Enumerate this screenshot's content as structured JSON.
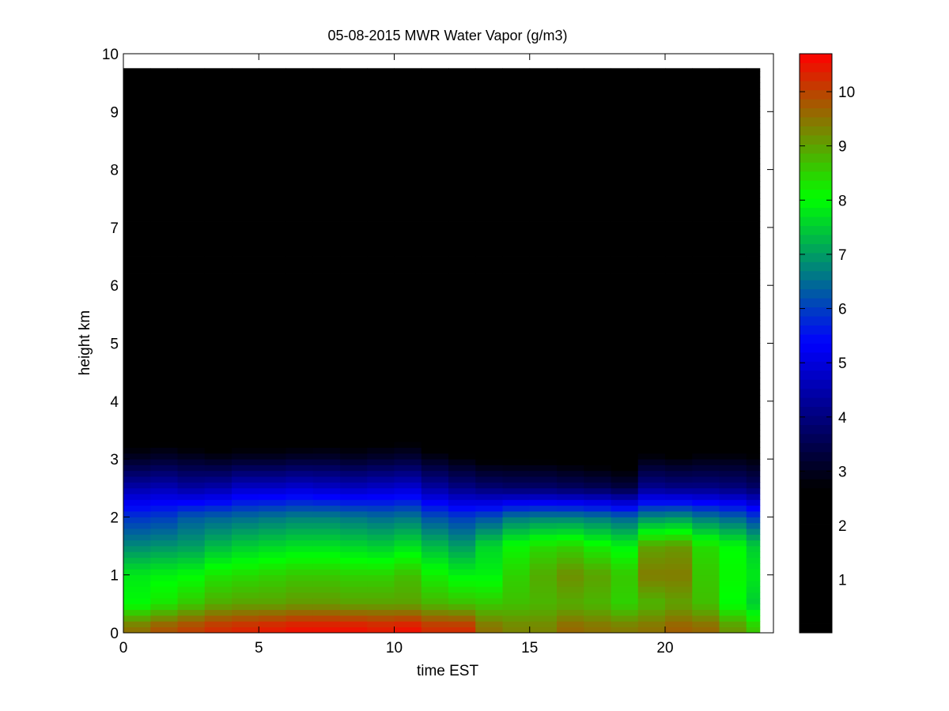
{
  "chart_data": {
    "type": "heatmap",
    "title": "05-08-2015 MWR Water Vapor (g/m3)",
    "xlabel": "time EST",
    "ylabel": "height km",
    "xlim": [
      0,
      24
    ],
    "ylim": [
      0,
      10
    ],
    "xticks": [
      0,
      5,
      10,
      15,
      20
    ],
    "yticks": [
      0,
      1,
      2,
      3,
      4,
      5,
      6,
      7,
      8,
      9,
      10
    ],
    "colorbar": {
      "colormap": "jet",
      "range": [
        0.02,
        10.7
      ],
      "ticks": [
        1,
        2,
        3,
        4,
        5,
        6,
        7,
        8,
        9,
        10
      ]
    },
    "grid": false,
    "x_hours": [
      0.5,
      1.5,
      2.5,
      3.5,
      4.5,
      5.5,
      6.5,
      7.5,
      8.5,
      9.5,
      10.5,
      11.5,
      12.5,
      13.5,
      14.5,
      15.5,
      16.5,
      17.5,
      18.5,
      19.5,
      20.5,
      21.5,
      22.5,
      23.5
    ],
    "data_extent": {
      "x": [
        0,
        23.5
      ],
      "y": [
        0,
        9.75
      ]
    },
    "profiles_at_height_km": {
      "heights": [
        0.1,
        0.5,
        1.0,
        1.5,
        2.0,
        2.5,
        3.0,
        3.5,
        4.0,
        4.5,
        5.0,
        5.5
      ],
      "values_by_hour": [
        [
          9.5,
          8.0,
          7.8,
          6.8,
          5.9,
          4.5,
          3.1,
          2.1,
          1.4,
          0.8,
          0.5,
          0.3
        ],
        [
          9.8,
          8.3,
          7.9,
          6.9,
          6.0,
          4.6,
          3.2,
          2.2,
          1.5,
          0.8,
          0.5,
          0.3
        ],
        [
          10.0,
          8.6,
          8.0,
          7.0,
          6.3,
          4.4,
          3.1,
          2.0,
          1.4,
          0.8,
          0.5,
          0.3
        ],
        [
          10.2,
          8.9,
          8.3,
          7.3,
          6.4,
          4.5,
          3.0,
          1.9,
          1.3,
          0.8,
          0.5,
          0.3
        ],
        [
          10.3,
          9.0,
          8.4,
          7.5,
          6.5,
          4.8,
          3.1,
          2.0,
          1.3,
          0.8,
          0.5,
          0.3
        ],
        [
          10.4,
          9.0,
          8.5,
          7.6,
          6.6,
          4.8,
          3.1,
          2.0,
          1.3,
          0.8,
          0.5,
          0.3
        ],
        [
          10.5,
          9.1,
          8.6,
          7.7,
          6.7,
          4.9,
          3.2,
          2.0,
          1.3,
          0.8,
          0.5,
          0.3
        ],
        [
          10.5,
          9.1,
          8.6,
          7.7,
          6.7,
          4.8,
          3.2,
          2.1,
          1.4,
          0.8,
          0.5,
          0.3
        ],
        [
          10.5,
          9.0,
          8.5,
          7.6,
          6.6,
          4.7,
          3.1,
          2.1,
          1.4,
          0.8,
          0.5,
          0.3
        ],
        [
          10.4,
          9.0,
          8.5,
          7.5,
          6.5,
          4.8,
          3.2,
          2.2,
          1.4,
          0.9,
          0.6,
          0.3
        ],
        [
          10.5,
          9.0,
          8.7,
          7.7,
          6.6,
          4.9,
          3.3,
          2.2,
          1.5,
          0.9,
          0.6,
          0.3
        ],
        [
          10.2,
          8.8,
          8.2,
          7.3,
          6.2,
          4.4,
          3.0,
          2.0,
          1.4,
          0.8,
          0.5,
          0.3
        ],
        [
          10.2,
          8.7,
          7.9,
          7.0,
          6.0,
          4.1,
          2.8,
          1.9,
          1.3,
          0.8,
          0.5,
          0.3
        ],
        [
          9.5,
          8.6,
          7.9,
          7.6,
          6.2,
          3.9,
          2.6,
          1.6,
          1.1,
          0.6,
          0.4,
          0.2
        ],
        [
          9.3,
          8.7,
          8.5,
          8.1,
          6.6,
          3.8,
          2.6,
          1.7,
          1.1,
          0.6,
          0.4,
          0.2
        ],
        [
          9.3,
          8.8,
          8.9,
          8.4,
          6.7,
          3.8,
          2.6,
          1.6,
          1.0,
          0.6,
          0.4,
          0.2
        ],
        [
          9.6,
          8.9,
          9.2,
          8.5,
          6.7,
          3.7,
          2.5,
          1.5,
          1.0,
          0.6,
          0.3,
          0.2
        ],
        [
          9.5,
          8.8,
          9.0,
          8.2,
          6.6,
          3.6,
          2.4,
          1.5,
          1.0,
          0.6,
          0.3,
          0.2
        ],
        [
          9.4,
          8.5,
          8.6,
          7.9,
          6.4,
          3.4,
          2.3,
          1.4,
          0.9,
          0.5,
          0.3,
          0.2
        ],
        [
          9.5,
          8.8,
          9.4,
          9.0,
          6.8,
          4.2,
          2.9,
          1.8,
          1.2,
          0.7,
          0.4,
          0.2
        ],
        [
          9.7,
          9.0,
          9.4,
          9.1,
          6.9,
          4.1,
          2.8,
          1.8,
          1.2,
          0.7,
          0.4,
          0.2
        ],
        [
          9.6,
          8.7,
          8.6,
          8.4,
          6.6,
          4.1,
          2.9,
          1.9,
          1.3,
          0.8,
          0.5,
          0.3
        ],
        [
          9.1,
          8.0,
          8.1,
          8.0,
          6.4,
          4.0,
          2.9,
          1.9,
          1.3,
          0.8,
          0.5,
          0.3
        ],
        [
          8.6,
          7.5,
          7.8,
          7.5,
          6.0,
          3.8,
          2.8,
          2.0,
          1.4,
          0.8,
          0.5,
          0.3
        ]
      ]
    }
  }
}
